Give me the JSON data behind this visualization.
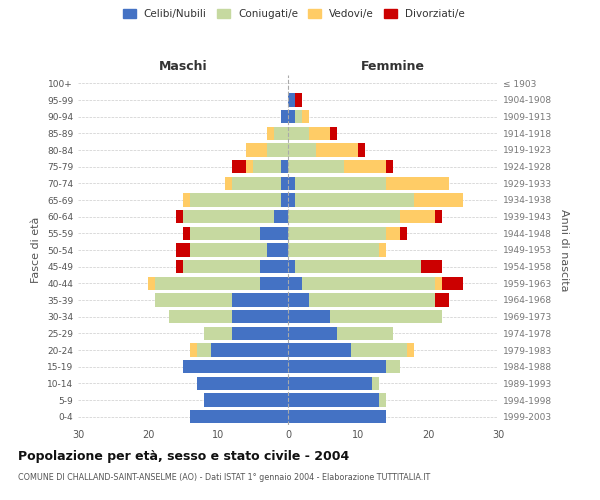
{
  "age_groups": [
    "0-4",
    "5-9",
    "10-14",
    "15-19",
    "20-24",
    "25-29",
    "30-34",
    "35-39",
    "40-44",
    "45-49",
    "50-54",
    "55-59",
    "60-64",
    "65-69",
    "70-74",
    "75-79",
    "80-84",
    "85-89",
    "90-94",
    "95-99",
    "100+"
  ],
  "birth_years": [
    "1999-2003",
    "1994-1998",
    "1989-1993",
    "1984-1988",
    "1979-1983",
    "1974-1978",
    "1969-1973",
    "1964-1968",
    "1959-1963",
    "1954-1958",
    "1949-1953",
    "1944-1948",
    "1939-1943",
    "1934-1938",
    "1929-1933",
    "1924-1928",
    "1919-1923",
    "1914-1918",
    "1909-1913",
    "1904-1908",
    "≤ 1903"
  ],
  "maschi": {
    "celibi": [
      14,
      12,
      13,
      15,
      11,
      8,
      8,
      8,
      4,
      4,
      3,
      4,
      2,
      1,
      1,
      1,
      0,
      0,
      1,
      0,
      0
    ],
    "coniugati": [
      0,
      0,
      0,
      0,
      2,
      4,
      9,
      11,
      15,
      11,
      11,
      10,
      13,
      13,
      7,
      4,
      3,
      2,
      0,
      0,
      0
    ],
    "vedovi": [
      0,
      0,
      0,
      0,
      1,
      0,
      0,
      0,
      1,
      0,
      0,
      0,
      0,
      1,
      1,
      1,
      3,
      1,
      0,
      0,
      0
    ],
    "divorziati": [
      0,
      0,
      0,
      0,
      0,
      0,
      0,
      0,
      0,
      1,
      2,
      1,
      1,
      0,
      0,
      2,
      0,
      0,
      0,
      0,
      0
    ]
  },
  "femmine": {
    "nubili": [
      14,
      13,
      12,
      14,
      9,
      7,
      6,
      3,
      2,
      1,
      0,
      0,
      0,
      1,
      1,
      0,
      0,
      0,
      1,
      1,
      0
    ],
    "coniugate": [
      0,
      1,
      1,
      2,
      8,
      8,
      16,
      18,
      19,
      18,
      13,
      14,
      16,
      17,
      13,
      8,
      4,
      3,
      1,
      0,
      0
    ],
    "vedove": [
      0,
      0,
      0,
      0,
      1,
      0,
      0,
      0,
      1,
      0,
      1,
      2,
      5,
      7,
      9,
      6,
      6,
      3,
      1,
      0,
      0
    ],
    "divorziate": [
      0,
      0,
      0,
      0,
      0,
      0,
      0,
      2,
      3,
      3,
      0,
      1,
      1,
      0,
      0,
      1,
      1,
      1,
      0,
      1,
      0
    ]
  },
  "colors": {
    "celibi_nubili": "#4472C4",
    "coniugati": "#C6D9A0",
    "vedovi": "#FFCC66",
    "divorziati": "#CC0000"
  },
  "xlim": 30,
  "title": "Popolazione per età, sesso e stato civile - 2004",
  "subtitle": "COMUNE DI CHALLAND-SAINT-ANSELME (AO) - Dati ISTAT 1° gennaio 2004 - Elaborazione TUTTITALIA.IT",
  "ylabel_left": "Fasce di età",
  "ylabel_right": "Anni di nascita",
  "xlabel_maschi": "Maschi",
  "xlabel_femmine": "Femmine",
  "legend_labels": [
    "Celibi/Nubili",
    "Coniugati/e",
    "Vedovi/e",
    "Divorziati/e"
  ],
  "background_color": "#FFFFFF",
  "grid_color": "#CCCCCC"
}
